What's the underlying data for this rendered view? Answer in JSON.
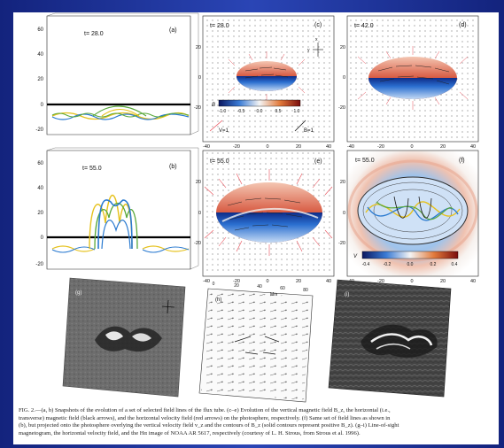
{
  "panels": {
    "a": {
      "letter": "(a)",
      "time": "t=   28.0",
      "yticks": [
        "60",
        "40",
        "20",
        "0",
        "-20"
      ]
    },
    "b": {
      "letter": "(b)",
      "time": "t=   55.0",
      "yticks": [
        "60",
        "40",
        "20",
        "0",
        "-20"
      ]
    },
    "c": {
      "letter": "(c)",
      "time": "t=   28.0",
      "axis_x": "x",
      "axis_y": "y",
      "colorbar_label": "B",
      "colorbar_ticks": [
        "-1.0",
        "-0.5",
        "0.0",
        "0.5",
        "1.0"
      ],
      "arrow_v": "V",
      "arrow_v_value": "=1",
      "arrow_b": "B",
      "arrow_b_value": "=1",
      "xticks": [
        "-40",
        "-20",
        "0",
        "20",
        "40"
      ],
      "yticks": [
        "20",
        "0",
        "-20"
      ]
    },
    "d": {
      "letter": "(d)",
      "time": "t=   42.0",
      "xticks": [
        "-40",
        "-20",
        "0",
        "20",
        "40"
      ],
      "yticks": [
        "20",
        "0",
        "-20"
      ]
    },
    "e": {
      "letter": "(e)",
      "time": "t=   55.0",
      "xticks": [
        "-40",
        "-20",
        "0",
        "20",
        "40"
      ],
      "yticks": [
        "20",
        "0",
        "-20"
      ]
    },
    "f": {
      "letter": "(f)",
      "time": "t=   55.0",
      "colorbar_label": "V",
      "colorbar_ticks": [
        "-0.4",
        "-0.2",
        "0.0",
        "0.2",
        "0.4"
      ],
      "xticks": [
        "-40",
        "-20",
        "0",
        "20",
        "40"
      ],
      "yticks": [
        "20",
        "0",
        "-20"
      ]
    },
    "g": {
      "letter": "(g)"
    },
    "h": {
      "letter": "(h)",
      "top_ticks": [
        "0",
        "20",
        "40",
        "60",
        "80"
      ],
      "axis_label": "Mm"
    },
    "i": {
      "letter": "(i)"
    }
  },
  "caption": {
    "line1": "FIG. 2.—(a, b) Snapshots of the evolution of a set of selected field lines of the flux tube. (c–e) Evolution of the vertical magnetic field B_z, the horizontal (i.e.,",
    "line2": "transverse) magnetic field (black arrows), and the horizontal velocity field (red arrows) on the photosphere, respectively. (f) Same set of field lines as shown in",
    "line3": "(b), but projected onto the photosphere overlying the vertical velocity field v_z and the contours of B_z (solid contours represent positive B_z). (g–i) Line-of-sight",
    "line4": "magnetogram, the horizontal velocity field, and the Hα image of NOAA AR 5617, respectively (courtesy of L. H. Strous, from Strous et al. 1996)."
  },
  "colors": {
    "background": "#1b2f93",
    "positive_field": "#c8301e",
    "negative_field": "#2166c8",
    "field_line_yellow": "#e6c21e",
    "field_line_blue": "#2a7ad0",
    "field_line_green": "#5aa83a"
  }
}
